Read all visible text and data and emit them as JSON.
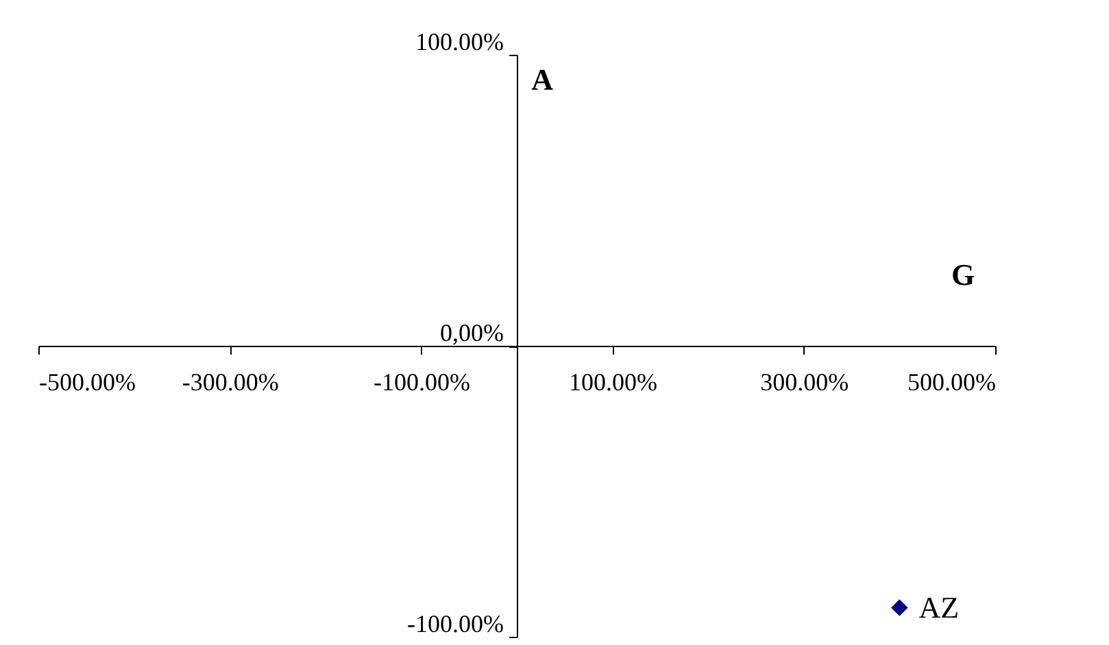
{
  "chart_data": {
    "type": "scatter",
    "xlabel": "G",
    "ylabel": "A",
    "series": [
      {
        "name": "AZ",
        "color": "#000080",
        "x": [
          400
        ],
        "values": [
          -90
        ]
      }
    ],
    "xlim": [
      -500,
      500
    ],
    "ylim": [
      -100,
      100
    ],
    "xticks": [
      {
        "value": -500,
        "label": "-500.00%"
      },
      {
        "value": -300,
        "label": "-300.00%"
      },
      {
        "value": -100,
        "label": "-100.00%"
      },
      {
        "value": 100,
        "label": "100.00%"
      },
      {
        "value": 300,
        "label": "300.00%"
      },
      {
        "value": 500,
        "label": "500.00%"
      }
    ],
    "yticks": [
      {
        "value": -100,
        "label": "-100.00%"
      },
      {
        "value": 0,
        "label": "0,00%"
      },
      {
        "value": 100,
        "label": "100.00%"
      }
    ],
    "marker": "diamond",
    "grid": false,
    "legend": false
  }
}
